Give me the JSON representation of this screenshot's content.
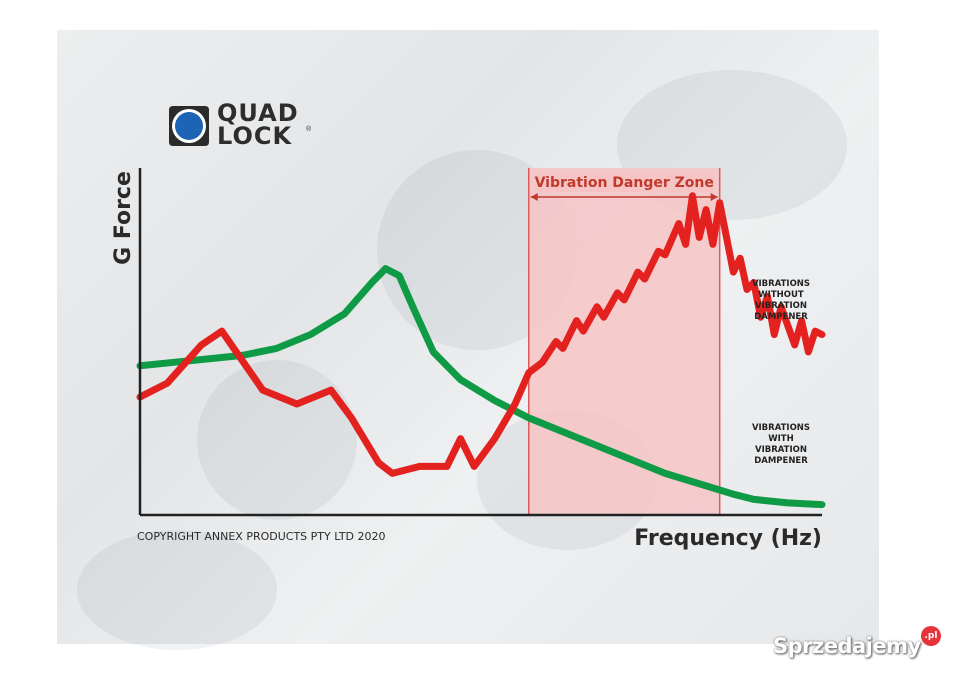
{
  "logo": {
    "line1": "QUAD",
    "line2": "LOCK",
    "registered": "®",
    "accent": "#1e64b4"
  },
  "watermark": {
    "text": "Sprzedajemy",
    "badge": ".pl",
    "badge_color": "#e8333a"
  },
  "chart_data": {
    "type": "line",
    "title": "",
    "xlabel": "Frequency (Hz)",
    "ylabel": "G Force",
    "copyright": "COPYRIGHT ANNEX PRODUCTS PTY LTD 2020",
    "x_axis_ticks": false,
    "y_axis_ticks": false,
    "grid": false,
    "danger_zone": {
      "label": "Vibration Danger Zone",
      "x_start": 57,
      "x_end": 85,
      "fill": "#f7c4c6",
      "border": "#e05a5a"
    },
    "series": [
      {
        "name": "VIBRATIONS WITHOUT VIBRATION DAMPENER",
        "label_lines": [
          "VIBRATIONS",
          "WITHOUT",
          "VIBRATION",
          "DAMPENER"
        ],
        "color": "#e3211f",
        "x": [
          0,
          4,
          9,
          12,
          18,
          23,
          28,
          31,
          35,
          37,
          41,
          45,
          47,
          49,
          52,
          55,
          57,
          59,
          61,
          62,
          64,
          65,
          67,
          68,
          70,
          71,
          73,
          74,
          76,
          77,
          79,
          80,
          81,
          82,
          83,
          84,
          85,
          87,
          88,
          89,
          90,
          91,
          92,
          93,
          94,
          96,
          97,
          98,
          99,
          100
        ],
        "y": [
          34,
          38,
          49,
          53,
          36,
          32,
          36,
          28,
          15,
          12,
          14,
          14,
          22,
          14,
          22,
          32,
          41,
          44,
          50,
          48,
          56,
          53,
          60,
          57,
          64,
          62,
          70,
          68,
          76,
          75,
          84,
          78,
          92,
          80,
          88,
          78,
          90,
          70,
          74,
          65,
          67,
          57,
          63,
          52,
          60,
          49,
          56,
          47,
          53,
          52
        ]
      },
      {
        "name": "VIBRATIONS WITH VIBRATION DAMPENER",
        "label_lines": [
          "VIBRATIONS",
          "WITH",
          "VIBRATION",
          "DAMPENER"
        ],
        "color": "#0f9a46",
        "x": [
          0,
          5,
          10,
          15,
          20,
          25,
          30,
          34,
          36,
          38,
          40,
          43,
          47,
          52,
          57,
          62,
          67,
          72,
          77,
          82,
          87,
          90,
          95,
          100
        ],
        "y": [
          43,
          44,
          45,
          46,
          48,
          52,
          58,
          67,
          71,
          69,
          60,
          47,
          39,
          33,
          28,
          24,
          20,
          16,
          12,
          9,
          6,
          4.5,
          3.5,
          3
        ]
      }
    ],
    "xlim": [
      0,
      100
    ],
    "ylim": [
      0,
      100
    ]
  }
}
